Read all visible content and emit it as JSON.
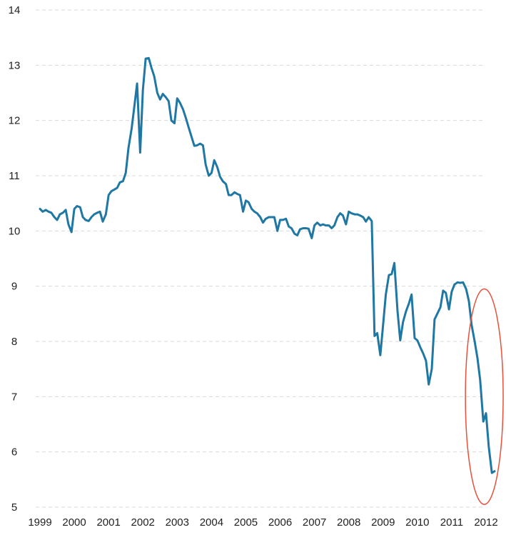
{
  "chart_data": {
    "type": "line",
    "title": "",
    "xlabel": "",
    "ylabel": "",
    "xlim": [
      1999,
      2012.6
    ],
    "ylim": [
      5,
      14
    ],
    "grid": true,
    "legend": "none",
    "yticks": [
      "5",
      "6",
      "7",
      "8",
      "9",
      "10",
      "11",
      "12",
      "13",
      "14"
    ],
    "xticks": [
      "1999",
      "2000",
      "2001",
      "2002",
      "2003",
      "2004",
      "2005",
      "2006",
      "2007",
      "2008",
      "2009",
      "2010",
      "2011",
      "2012"
    ],
    "colors": {
      "line": "#1f77a4",
      "highlight": "#e8503a",
      "grid": "#d9d9d9",
      "text": "#222222"
    },
    "highlight": {
      "shape": "ellipse",
      "x_center": 2011.95,
      "y_center": 7.0,
      "x_radius": 0.55,
      "y_radius": 1.95
    },
    "series": [
      {
        "x": [
          1999.0,
          1999.08,
          1999.17,
          1999.25,
          1999.33,
          1999.42,
          1999.5,
          1999.58,
          1999.67,
          1999.75,
          1999.83,
          1999.92,
          2000.0,
          2000.08,
          2000.17,
          2000.25,
          2000.33,
          2000.42,
          2000.5,
          2000.58,
          2000.67,
          2000.75,
          2000.83,
          2000.92,
          2001.0,
          2001.08,
          2001.17,
          2001.25,
          2001.33,
          2001.42,
          2001.5,
          2001.58,
          2001.67,
          2001.75,
          2001.83,
          2001.92,
          2002.0,
          2002.08,
          2002.17,
          2002.25,
          2002.33,
          2002.42,
          2002.5,
          2002.58,
          2002.67,
          2002.75,
          2002.83,
          2002.92,
          2003.0,
          2003.08,
          2003.17,
          2003.25,
          2003.33,
          2003.42,
          2003.5,
          2003.58,
          2003.67,
          2003.75,
          2003.83,
          2003.92,
          2004.0,
          2004.08,
          2004.17,
          2004.25,
          2004.33,
          2004.42,
          2004.5,
          2004.58,
          2004.67,
          2004.75,
          2004.83,
          2004.92,
          2005.0,
          2005.08,
          2005.17,
          2005.25,
          2005.33,
          2005.42,
          2005.5,
          2005.58,
          2005.67,
          2005.75,
          2005.83,
          2005.92,
          2006.0,
          2006.08,
          2006.17,
          2006.25,
          2006.33,
          2006.42,
          2006.5,
          2006.58,
          2006.67,
          2006.75,
          2006.83,
          2006.92,
          2007.0,
          2007.08,
          2007.17,
          2007.25,
          2007.33,
          2007.42,
          2007.5,
          2007.58,
          2007.67,
          2007.75,
          2007.83,
          2007.92,
          2008.0,
          2008.08,
          2008.17,
          2008.25,
          2008.33,
          2008.42,
          2008.5,
          2008.58,
          2008.67,
          2008.75,
          2008.83,
          2008.92,
          2009.0,
          2009.08,
          2009.17,
          2009.25,
          2009.33,
          2009.42,
          2009.5,
          2009.58,
          2009.67,
          2009.75,
          2009.83,
          2009.92,
          2010.0,
          2010.08,
          2010.17,
          2010.25,
          2010.33,
          2010.42,
          2010.5,
          2010.58,
          2010.67,
          2010.75,
          2010.83,
          2010.92,
          2011.0,
          2011.08,
          2011.17,
          2011.25,
          2011.33,
          2011.42,
          2011.5,
          2011.58,
          2011.67,
          2011.75,
          2011.83,
          2011.92,
          2012.0,
          2012.08,
          2012.17,
          2012.25
        ],
        "y": [
          10.4,
          10.35,
          10.38,
          10.35,
          10.33,
          10.25,
          10.2,
          10.3,
          10.33,
          10.38,
          10.12,
          9.98,
          10.4,
          10.45,
          10.43,
          10.25,
          10.2,
          10.18,
          10.25,
          10.3,
          10.33,
          10.35,
          10.17,
          10.3,
          10.65,
          10.72,
          10.75,
          10.78,
          10.88,
          10.9,
          11.05,
          11.5,
          11.85,
          12.25,
          12.67,
          11.42,
          12.55,
          13.12,
          13.13,
          12.95,
          12.8,
          12.5,
          12.38,
          12.48,
          12.42,
          12.35,
          12.0,
          11.95,
          12.4,
          12.32,
          12.2,
          12.05,
          11.88,
          11.7,
          11.54,
          11.55,
          11.58,
          11.55,
          11.2,
          11.0,
          11.05,
          11.28,
          11.15,
          10.98,
          10.9,
          10.85,
          10.65,
          10.65,
          10.7,
          10.67,
          10.65,
          10.35,
          10.55,
          10.52,
          10.4,
          10.35,
          10.32,
          10.25,
          10.15,
          10.22,
          10.25,
          10.25,
          10.25,
          10.0,
          10.2,
          10.2,
          10.22,
          10.08,
          10.05,
          9.95,
          9.92,
          10.03,
          10.05,
          10.05,
          10.04,
          9.87,
          10.1,
          10.15,
          10.1,
          10.12,
          10.1,
          10.1,
          10.05,
          10.1,
          10.25,
          10.32,
          10.28,
          10.12,
          10.35,
          10.32,
          10.3,
          10.3,
          10.28,
          10.25,
          10.17,
          10.25,
          10.18,
          8.1,
          8.15,
          7.75,
          8.3,
          8.85,
          9.2,
          9.22,
          9.42,
          8.55,
          8.02,
          8.35,
          8.55,
          8.68,
          8.85,
          8.06,
          8.02,
          7.9,
          7.78,
          7.65,
          7.22,
          7.5,
          8.4,
          8.5,
          8.62,
          8.92,
          8.88,
          8.58,
          8.9,
          9.03,
          9.07,
          9.06,
          9.07,
          8.95,
          8.73,
          8.3,
          8.0,
          7.7,
          7.3,
          6.55,
          6.7,
          6.1,
          5.62,
          5.65
        ]
      }
    ]
  }
}
